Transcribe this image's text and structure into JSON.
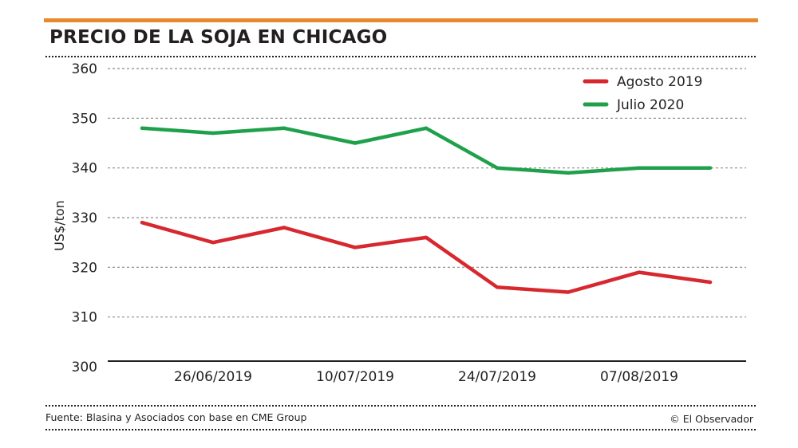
{
  "header": {
    "title": "PRECIO DE LA SOJA EN CHICAGO"
  },
  "footer": {
    "source": "Fuente: Blasina y Asociados con base en CME Group",
    "credit": "© El Observador"
  },
  "colors": {
    "accent": "#e8892b",
    "agosto": "#d7282f",
    "julio": "#1fa04a",
    "text": "#231f20",
    "grid": "#8a8a8a"
  },
  "chart_data": {
    "type": "line",
    "title": "PRECIO DE LA SOJA EN CHICAGO",
    "xlabel": "",
    "ylabel": "US$/ton",
    "ylim": [
      300,
      360
    ],
    "yticks": [
      300,
      310,
      320,
      330,
      340,
      350,
      360
    ],
    "xtick_labels": [
      {
        "index": 1,
        "label": "26/06/2019"
      },
      {
        "index": 3,
        "label": "10/07/2019"
      },
      {
        "index": 5,
        "label": "24/07/2019"
      },
      {
        "index": 7,
        "label": "07/08/2019"
      }
    ],
    "x": [
      0,
      1,
      2,
      3,
      4,
      5,
      6,
      7,
      8
    ],
    "grid": true,
    "legend_position": "top-right",
    "series": [
      {
        "name": "Agosto 2019",
        "color": "#d7282f",
        "values": [
          329,
          325,
          328,
          324,
          326,
          316,
          315,
          319,
          317
        ]
      },
      {
        "name": "Julio 2020",
        "color": "#1fa04a",
        "values": [
          348,
          347,
          348,
          345,
          348,
          340,
          339,
          340,
          340
        ]
      }
    ]
  }
}
